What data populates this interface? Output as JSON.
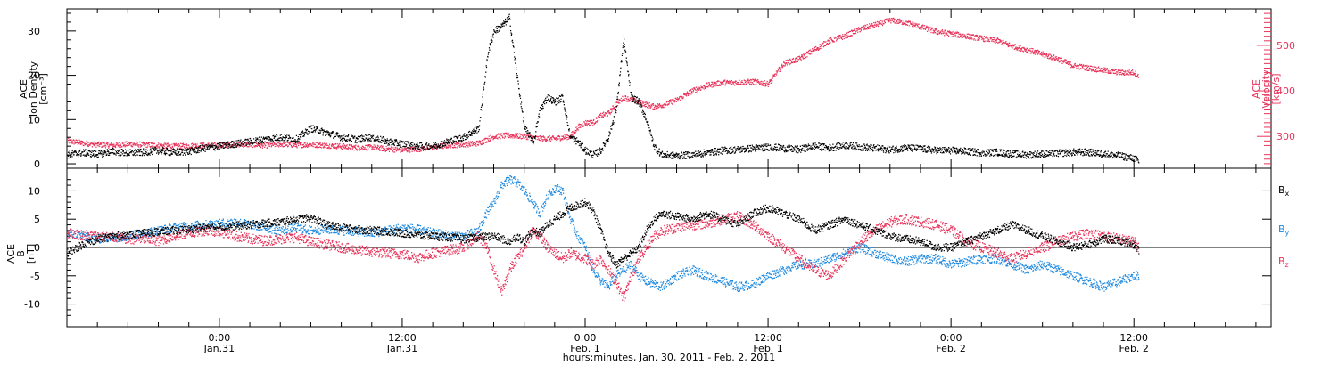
{
  "figure": {
    "xlabel": "hours:minutes, Jan. 30, 2011 - Feb. 2, 2011",
    "x_ticks": [
      {
        "t": 18,
        "time": "0:00",
        "date": "Jan.31"
      },
      {
        "t": 30,
        "time": "12:00",
        "date": "Jan.31"
      },
      {
        "t": 42,
        "time": "0:00",
        "date": "Feb. 1"
      },
      {
        "t": 54,
        "time": "12:00",
        "date": "Feb. 1"
      },
      {
        "t": 66,
        "time": "0:00",
        "date": "Feb. 2"
      },
      {
        "t": 78,
        "time": "12:00",
        "date": "Feb. 2"
      }
    ],
    "x_range_hours": [
      8,
      87
    ]
  },
  "chart_data": [
    {
      "type": "scatter",
      "panel": "top",
      "left_axis_label": [
        "ACE",
        "Ion Density",
        "[cm⁻³]"
      ],
      "right_axis_label": [
        "ACE",
        "Velocity",
        "[km/s]"
      ],
      "left_ylim": [
        -1,
        35
      ],
      "left_yticks": [
        0,
        10,
        20,
        30
      ],
      "right_ylim": [
        230,
        580
      ],
      "right_yticks": [
        300,
        400,
        500
      ],
      "series": [
        {
          "axis": "left",
          "color": "#000000",
          "x_hours": [
            8,
            9,
            10,
            11,
            12,
            13,
            14,
            15,
            16,
            17,
            18,
            19,
            20,
            21,
            22,
            23,
            24,
            25,
            26,
            27,
            28,
            29,
            30,
            31,
            32,
            33,
            34,
            35,
            35.6,
            36,
            36.5,
            37,
            37.5,
            38,
            38.6,
            39,
            39.5,
            40,
            40.5,
            41,
            41.5,
            42,
            42.5,
            43,
            43.5,
            44,
            44.5,
            45,
            45.5,
            46,
            46.5,
            47,
            48,
            49,
            50,
            51,
            52,
            53,
            54,
            55,
            56,
            57,
            58,
            59,
            60,
            61,
            62,
            63,
            64,
            65,
            66,
            67,
            68,
            69,
            70,
            71,
            72,
            73,
            74,
            75,
            76,
            77,
            78,
            78.3
          ],
          "y": [
            2,
            2.5,
            2.2,
            2.8,
            2.4,
            2.6,
            3,
            2.5,
            2.8,
            3.5,
            4,
            4.5,
            5,
            5.5,
            6,
            5.5,
            8,
            7,
            6,
            5.5,
            6,
            5,
            4.5,
            4,
            4,
            5,
            6,
            8,
            25,
            30,
            31,
            33,
            20,
            8,
            5,
            12,
            15,
            14,
            15,
            6,
            5,
            3,
            2,
            3,
            6,
            12,
            28,
            15,
            14,
            10,
            4,
            2,
            1.8,
            2,
            2.5,
            3,
            3.2,
            3.5,
            3.8,
            3.5,
            3.2,
            4,
            3.6,
            4.2,
            3.8,
            3.5,
            3.2,
            3.6,
            3.4,
            3.0,
            3.0,
            2.8,
            2.5,
            2.6,
            2.2,
            2.0,
            2.2,
            2.4,
            2.6,
            2.6,
            2.2,
            1.8,
            1.2,
            0.5
          ]
        },
        {
          "axis": "right",
          "color": "#e8335a",
          "x_hours": [
            8,
            9,
            10,
            11,
            12,
            13,
            14,
            15,
            16,
            17,
            18,
            19,
            20,
            21,
            22,
            23,
            24,
            25,
            26,
            27,
            28,
            29,
            30,
            31,
            32,
            33,
            34,
            35,
            36,
            37,
            38,
            39,
            40,
            41,
            41.5,
            42,
            42.5,
            43,
            43.5,
            44,
            44.5,
            45,
            45.5,
            46,
            46.5,
            47,
            48,
            49,
            50,
            51,
            52,
            53,
            54,
            55,
            56,
            57,
            58,
            59,
            60,
            61,
            62,
            63,
            64,
            65,
            66,
            67,
            68,
            69,
            70,
            71,
            72,
            73,
            74,
            75,
            76,
            77,
            78,
            78.3
          ],
          "y": [
            290,
            285,
            282,
            280,
            283,
            282,
            280,
            278,
            279,
            280,
            280,
            282,
            282,
            280,
            283,
            281,
            282,
            280,
            278,
            275,
            276,
            272,
            270,
            272,
            276,
            280,
            282,
            285,
            300,
            302,
            300,
            295,
            295,
            300,
            320,
            330,
            330,
            345,
            350,
            370,
            385,
            380,
            375,
            370,
            365,
            368,
            380,
            400,
            412,
            418,
            418,
            420,
            415,
            460,
            470,
            490,
            510,
            520,
            535,
            545,
            555,
            550,
            540,
            530,
            525,
            520,
            515,
            510,
            498,
            490,
            480,
            470,
            455,
            450,
            445,
            440,
            440,
            430
          ]
        }
      ]
    },
    {
      "type": "scatter",
      "panel": "bottom",
      "left_axis_label": [
        "ACE",
        "B",
        "[nT]"
      ],
      "ylim": [
        -14,
        14
      ],
      "yticks": [
        -10,
        -5,
        0,
        5,
        10
      ],
      "legend": [
        {
          "label": "B",
          "sub": "x",
          "color": "#000000"
        },
        {
          "label": "B",
          "sub": "y",
          "color": "#1f8ae0"
        },
        {
          "label": "B",
          "sub": "z",
          "color": "#e8335a"
        }
      ],
      "series": [
        {
          "name": "Bx",
          "color": "#000000",
          "x_hours": [
            8,
            9,
            10,
            11,
            12,
            13,
            14,
            15,
            16,
            17,
            18,
            19,
            20,
            21,
            22,
            23,
            24,
            25,
            26,
            27,
            28,
            29,
            30,
            31,
            32,
            33,
            34,
            35,
            36,
            37,
            37.5,
            38,
            38.5,
            39,
            39.5,
            40,
            40.5,
            41,
            41.5,
            42,
            42.5,
            43,
            43.5,
            44,
            44.5,
            45,
            45.5,
            46,
            46.5,
            47,
            48,
            49,
            50,
            51,
            52,
            53,
            54,
            55,
            56,
            57,
            58,
            59,
            60,
            61,
            62,
            63,
            64,
            65,
            66,
            67,
            68,
            69,
            70,
            71,
            72,
            73,
            74,
            75,
            76,
            77,
            78,
            78.3
          ],
          "y": [
            -1,
            0.5,
            1.5,
            2,
            2.2,
            2.5,
            2.8,
            3,
            3.2,
            3.5,
            3.6,
            3.8,
            4,
            4.3,
            4.5,
            5,
            5.2,
            4,
            3.5,
            3.2,
            3,
            2.8,
            2.5,
            2.2,
            2,
            1.8,
            1.5,
            1.8,
            2,
            1,
            2,
            1,
            3,
            2.5,
            4,
            5,
            6,
            7,
            7.5,
            8,
            6.5,
            3,
            -1,
            -3,
            -2,
            -1,
            0,
            3,
            5,
            6,
            5.5,
            5,
            6,
            5,
            4,
            6,
            7,
            6,
            5,
            3,
            4,
            5,
            4,
            3,
            2,
            1.5,
            1,
            0,
            0,
            1,
            2,
            3,
            4,
            3,
            2,
            1,
            0,
            0.5,
            1.5,
            1.2,
            0.5,
            -0.5
          ]
        },
        {
          "name": "By",
          "color": "#1f8ae0",
          "x_hours": [
            8,
            9,
            10,
            11,
            12,
            13,
            14,
            15,
            16,
            17,
            18,
            19,
            20,
            21,
            22,
            23,
            24,
            25,
            26,
            27,
            28,
            29,
            30,
            31,
            32,
            33,
            34,
            35,
            35.5,
            36,
            36.5,
            37,
            37.5,
            38,
            38.5,
            39,
            39.5,
            40,
            40.5,
            41,
            41.5,
            42,
            42.5,
            43,
            43.5,
            44,
            44.5,
            45,
            45.5,
            46,
            46.5,
            47,
            48,
            49,
            50,
            51,
            52,
            53,
            54,
            55,
            56,
            57,
            58,
            59,
            60,
            61,
            62,
            63,
            64,
            65,
            66,
            67,
            68,
            69,
            70,
            71,
            72,
            73,
            74,
            75,
            76,
            77,
            78,
            78.3
          ],
          "y": [
            2.5,
            2,
            1.5,
            1.8,
            2,
            2.5,
            3,
            3.5,
            3.8,
            4,
            4.2,
            4.5,
            4,
            3.5,
            3,
            3.5,
            3,
            3.2,
            3,
            2.8,
            2.5,
            3,
            3.5,
            3.2,
            2.5,
            2.2,
            2,
            3,
            6,
            8,
            11,
            12,
            11.5,
            10,
            8,
            6,
            9,
            10.5,
            10,
            5,
            2,
            0,
            -4,
            -6,
            -7,
            -5,
            -4,
            -3,
            -5,
            -6,
            -6.5,
            -7,
            -5,
            -4,
            -5,
            -6,
            -7,
            -6.5,
            -5,
            -4,
            -3,
            -3,
            -2,
            -1,
            0,
            -1,
            -2,
            -2.5,
            -2,
            -2,
            -3,
            -2.5,
            -2,
            -2,
            -3,
            -4,
            -3,
            -4,
            -5,
            -6,
            -7,
            -6,
            -5,
            -5
          ]
        },
        {
          "name": "Bz",
          "color": "#e8335a",
          "x_hours": [
            8,
            9,
            10,
            11,
            12,
            13,
            14,
            15,
            16,
            17,
            18,
            19,
            20,
            21,
            22,
            23,
            24,
            25,
            26,
            27,
            28,
            29,
            30,
            31,
            32,
            33,
            34,
            35,
            35.5,
            36,
            36.5,
            37,
            37.5,
            38,
            38.5,
            39,
            39.5,
            40,
            40.5,
            41,
            41.5,
            42,
            42.5,
            43,
            43.5,
            44,
            44.5,
            45,
            45.5,
            46,
            46.5,
            47,
            48,
            49,
            50,
            51,
            52,
            53,
            54,
            55,
            56,
            57,
            58,
            59,
            60,
            61,
            62,
            63,
            64,
            65,
            66,
            67,
            68,
            69,
            70,
            71,
            72,
            73,
            74,
            75,
            76,
            77,
            78,
            78.3
          ],
          "y": [
            2.5,
            2.2,
            2,
            1.8,
            1.5,
            1.5,
            1.2,
            2,
            2.5,
            3,
            2.8,
            2,
            1.5,
            1.2,
            1.5,
            1.8,
            1,
            0.5,
            0,
            -0.5,
            -0.8,
            -1,
            -1.2,
            -1.8,
            -1,
            -0.5,
            0,
            2,
            0,
            -4,
            -8,
            -4,
            -2,
            0,
            3,
            2,
            0,
            -1,
            -2,
            -1,
            -1.5,
            -2,
            -3,
            -2,
            -4,
            -6,
            -9,
            -5,
            -2,
            0,
            2,
            3,
            3.5,
            4,
            4.2,
            5,
            5.5,
            4,
            2,
            0,
            -2,
            -4,
            -5,
            -2,
            1,
            3,
            4.5,
            5,
            4.5,
            4,
            3,
            1,
            0,
            -1,
            -2,
            -1,
            0,
            1,
            2,
            2.5,
            2,
            1.5,
            1,
            0
          ]
        }
      ]
    }
  ]
}
